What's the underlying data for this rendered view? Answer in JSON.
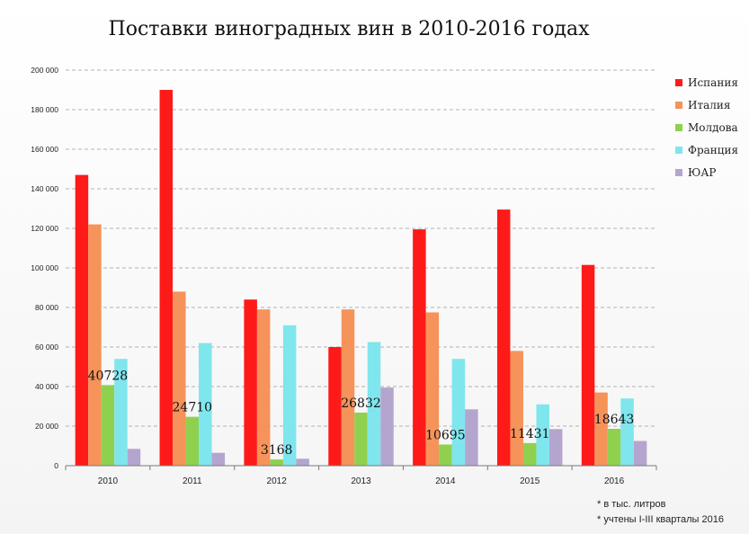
{
  "chart_data": {
    "type": "bar",
    "title": "Поставки виноградных вин в 2010-2016 годах",
    "categories": [
      "2010",
      "2011",
      "2012",
      "2013",
      "2014",
      "2015",
      "2016"
    ],
    "series": [
      {
        "name": "Испания",
        "color": "#ff1a1a",
        "values": [
          147000,
          190000,
          84000,
          60000,
          119500,
          129500,
          101500
        ]
      },
      {
        "name": "Италия",
        "color": "#f5935a",
        "values": [
          122000,
          88000,
          79000,
          79000,
          77500,
          58000,
          37000
        ]
      },
      {
        "name": "Молдова",
        "color": "#8fd14f",
        "values": [
          40728,
          24710,
          3168,
          26832,
          10695,
          11431,
          18643
        ]
      },
      {
        "name": "Франция",
        "color": "#7fe6ee",
        "values": [
          54000,
          62000,
          71000,
          62500,
          54000,
          31000,
          34000
        ]
      },
      {
        "name": "ЮАР",
        "color": "#b4a5cf",
        "values": [
          8500,
          6500,
          3500,
          39500,
          28500,
          18500,
          12500
        ]
      }
    ],
    "data_labels": {
      "series": "Молдова",
      "values": [
        "40728",
        "24710",
        "3168",
        "26832",
        "10695",
        "11431",
        "18643"
      ]
    },
    "y_ticks": [
      "0",
      "20 000",
      "40 000",
      "60 000",
      "80 000",
      "100 000",
      "120 000",
      "140 000",
      "160 000",
      "180 000",
      "200 000"
    ],
    "ylim": [
      0,
      200000
    ],
    "grid": true,
    "legend_position": "right"
  },
  "footnotes": [
    "* в тыс. литров",
    "* учтены I-III кварталы 2016"
  ]
}
